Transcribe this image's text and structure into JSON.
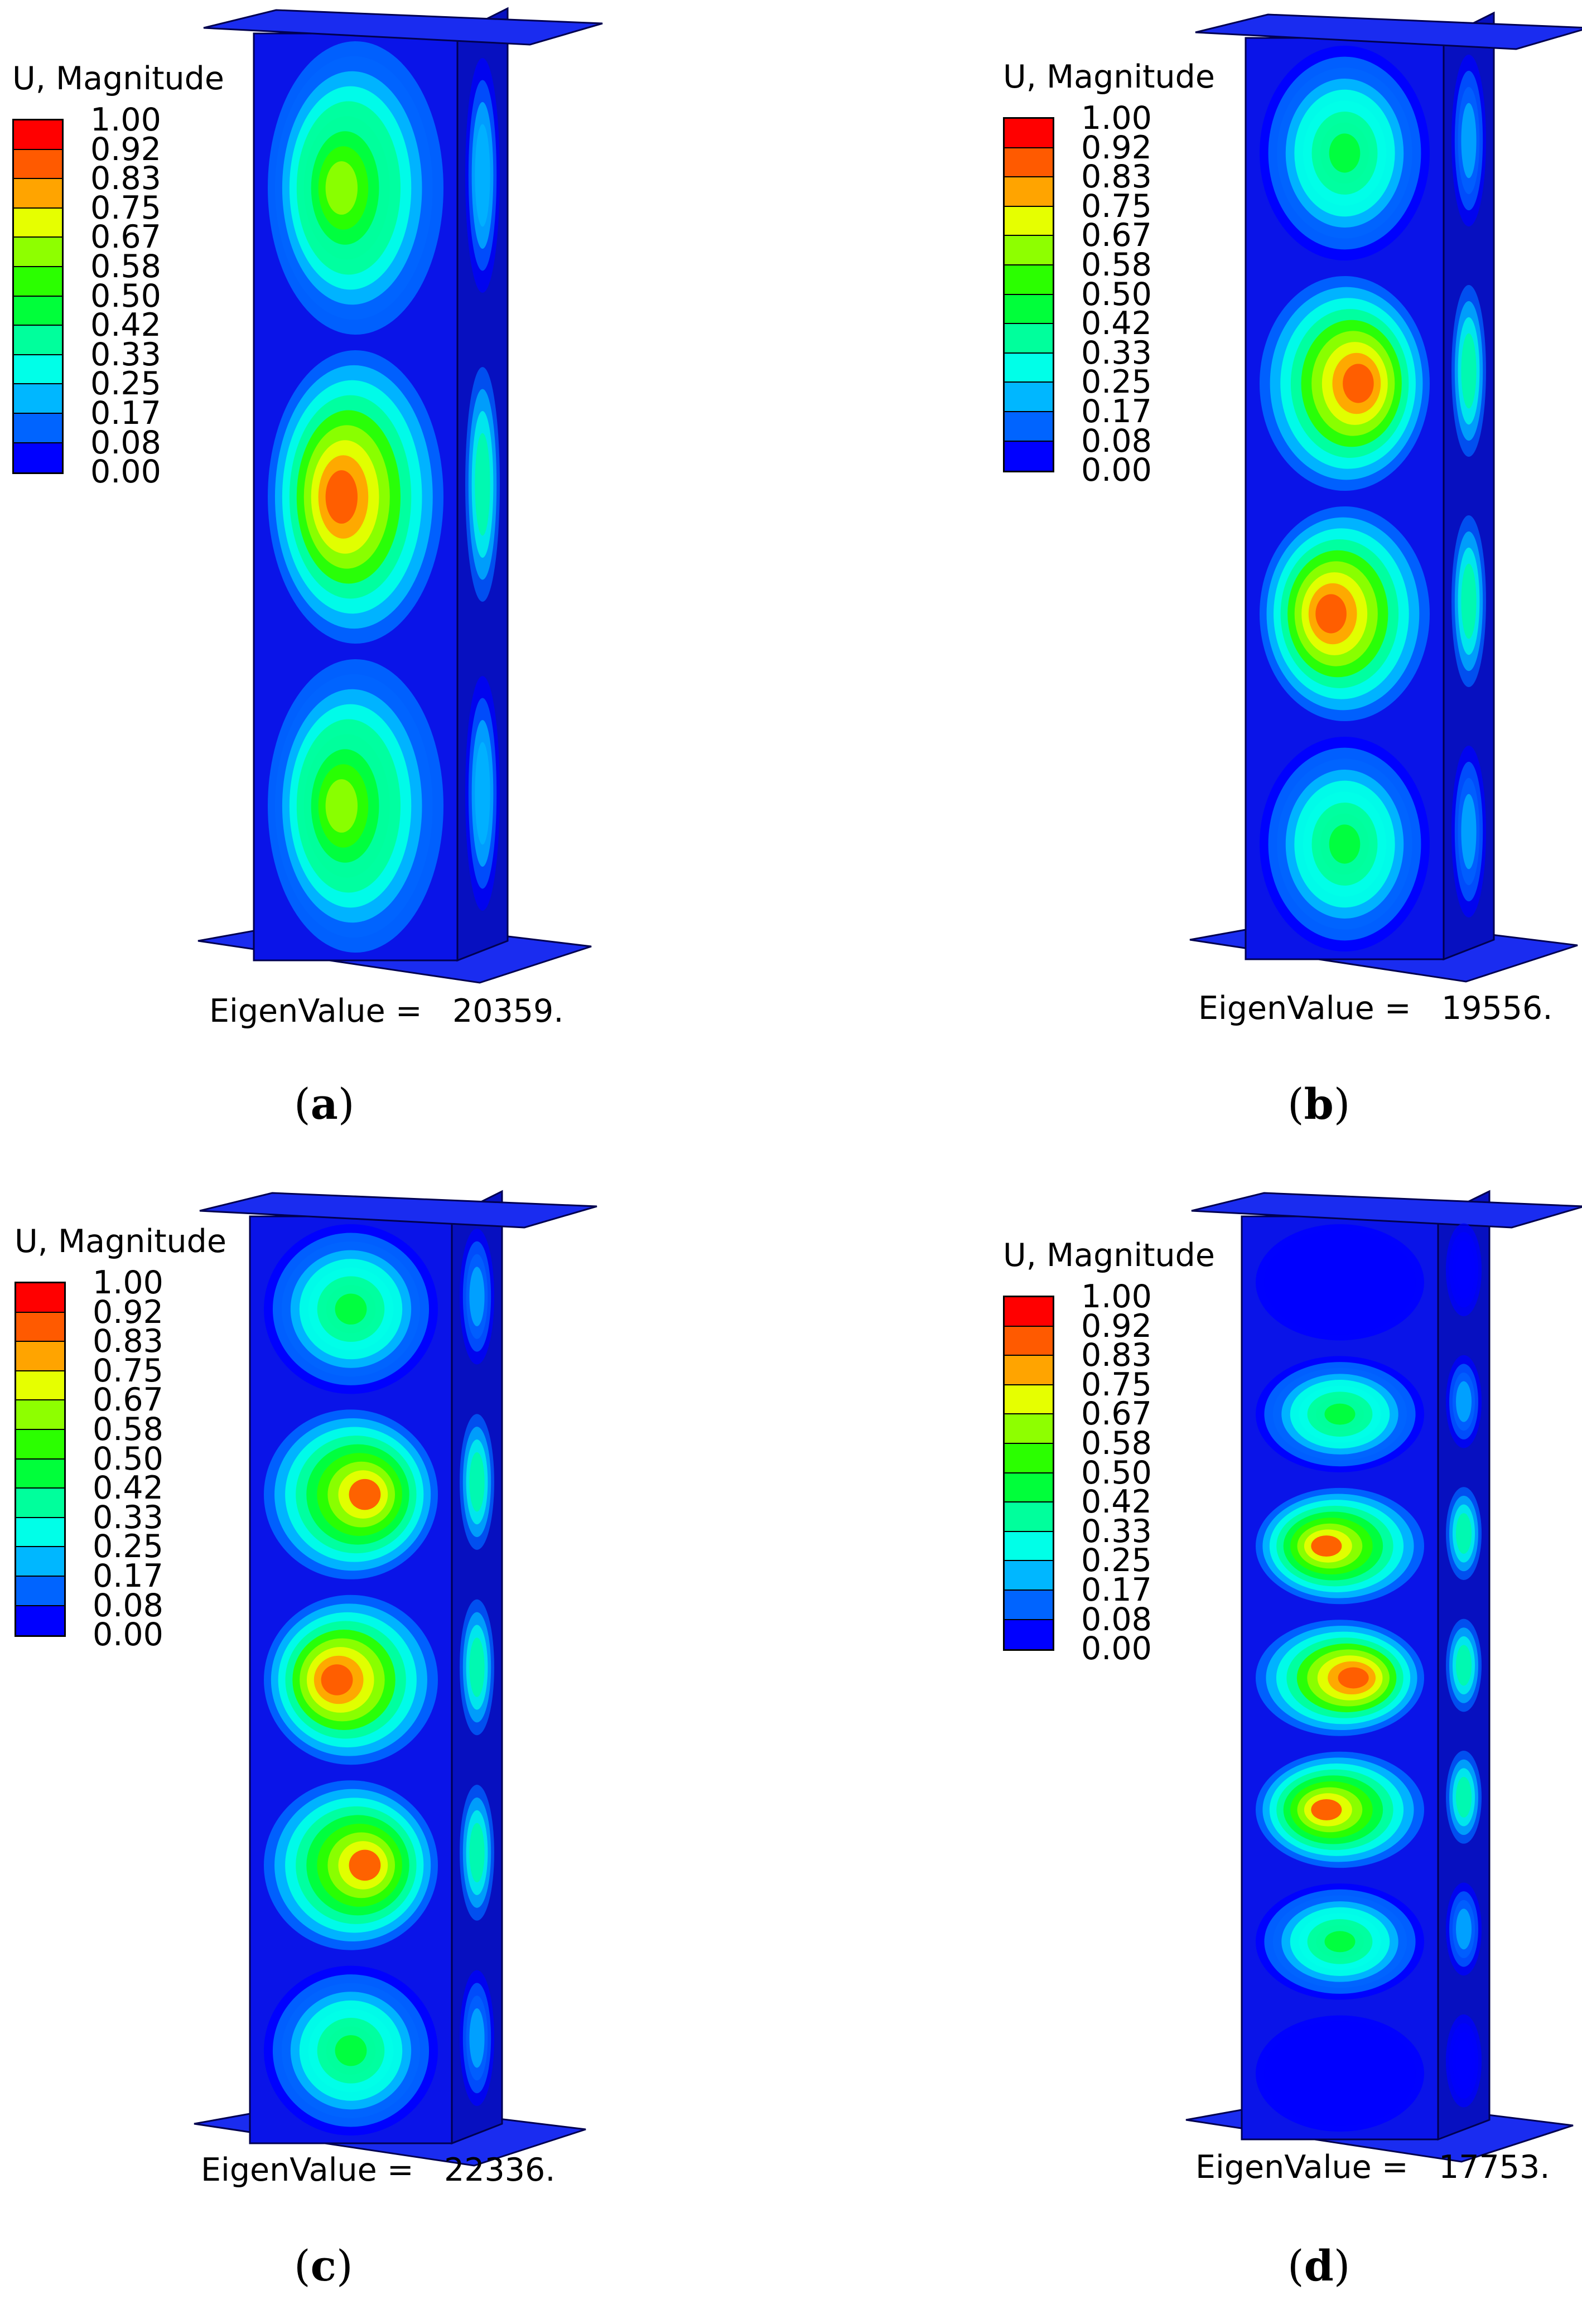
{
  "legend": {
    "title": "U, Magnitude",
    "ticks": [
      "1.00",
      "0.92",
      "0.83",
      "0.75",
      "0.67",
      "0.58",
      "0.50",
      "0.42",
      "0.33",
      "0.25",
      "0.17",
      "0.08",
      "0.00"
    ],
    "bin_colors": [
      "#ff0000",
      "#ff5a00",
      "#ffa400",
      "#e6ff00",
      "#8eff00",
      "#2bff00",
      "#00ff3a",
      "#00ff9c",
      "#00ffe8",
      "#00b7ff",
      "#0064ff",
      "#0000ff"
    ]
  },
  "colors": {
    "base": "#0a14e8",
    "side": "#0710c0",
    "plate": "#1a2cf0",
    "edge": "#000050"
  },
  "panels": [
    {
      "id": "a",
      "eigen_label": "EigenValue =",
      "eigen_value": "20359.",
      "caption_letter": "a",
      "lobes": [
        {
          "level": 0.67,
          "peak": "left"
        },
        {
          "level": 1.0,
          "peak": "left"
        },
        {
          "level": 0.67,
          "peak": "left"
        }
      ]
    },
    {
      "id": "b",
      "eigen_label": "EigenValue =",
      "eigen_value": "19556.",
      "caption_letter": "b",
      "lobes": [
        {
          "level": 0.5,
          "peak": "center"
        },
        {
          "level": 1.0,
          "peak": "right"
        },
        {
          "level": 1.0,
          "peak": "left"
        },
        {
          "level": 0.5,
          "peak": "center"
        }
      ]
    },
    {
      "id": "c",
      "eigen_label": "EigenValue =",
      "eigen_value": "22336.",
      "caption_letter": "c",
      "lobes": [
        {
          "level": 0.5,
          "peak": "center"
        },
        {
          "level": 0.92,
          "peak": "right"
        },
        {
          "level": 1.0,
          "peak": "left"
        },
        {
          "level": 0.92,
          "peak": "right"
        },
        {
          "level": 0.5,
          "peak": "center"
        }
      ]
    },
    {
      "id": "d",
      "eigen_label": "EigenValue =",
      "eigen_value": "17753.",
      "caption_letter": "d",
      "lobes": [
        {
          "level": 0.08,
          "peak": "center"
        },
        {
          "level": 0.5,
          "peak": "center"
        },
        {
          "level": 0.92,
          "peak": "left"
        },
        {
          "level": 1.0,
          "peak": "right"
        },
        {
          "level": 0.92,
          "peak": "left"
        },
        {
          "level": 0.5,
          "peak": "center"
        },
        {
          "level": 0.08,
          "peak": "center"
        }
      ]
    }
  ]
}
